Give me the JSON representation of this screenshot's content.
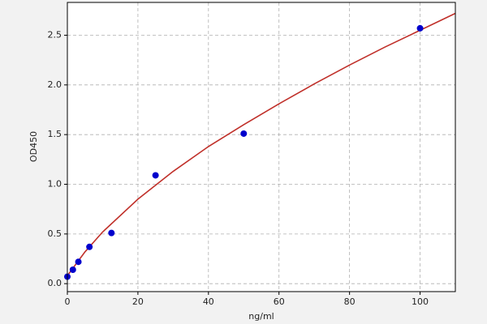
{
  "chart_data": {
    "type": "scatter",
    "xlabel": "ng/ml",
    "ylabel": "OD450",
    "points": {
      "x": [
        0,
        1.56,
        3.12,
        6.25,
        12.5,
        25,
        50,
        100
      ],
      "values": [
        0.07,
        0.14,
        0.22,
        0.37,
        0.51,
        1.09,
        1.51,
        2.57
      ],
      "color": "#0000cc"
    },
    "curve": {
      "x": [
        0,
        5,
        10,
        20,
        30,
        40,
        50,
        60,
        70,
        80,
        90,
        100,
        110
      ],
      "values": [
        0.08,
        0.32,
        0.52,
        0.85,
        1.13,
        1.38,
        1.6,
        1.81,
        2.01,
        2.2,
        2.38,
        2.55,
        2.72
      ],
      "color": "#c0302a"
    },
    "xlim": [
      0,
      110
    ],
    "ylim": [
      -0.08,
      2.83
    ],
    "xticks": [
      0,
      20,
      40,
      60,
      80,
      100
    ],
    "yticks": [
      {
        "value": 0,
        "label": "0.0"
      },
      0.5,
      {
        "value": 1,
        "label": "1.0"
      },
      1.5,
      {
        "value": 2,
        "label": "2.0"
      },
      2.5
    ],
    "grid": true
  }
}
